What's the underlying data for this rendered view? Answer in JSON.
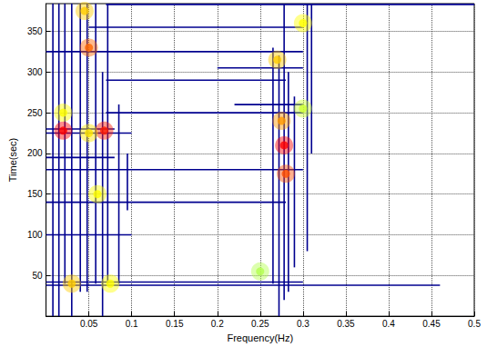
{
  "chart_data": {
    "type": "contour",
    "x_label": "Frequency(Hz)",
    "y_label": "Time(sec)",
    "xlim": [
      0,
      0.5
    ],
    "xticks": [
      0.05,
      0.1,
      0.15,
      0.2,
      0.25,
      0.3,
      0.35,
      0.4,
      0.45,
      0.5
    ],
    "ylim": [
      0,
      384
    ],
    "yticks": [
      50,
      100,
      150,
      200,
      250,
      300,
      350
    ],
    "grid": true,
    "color": "#00008f",
    "zlim": [
      0,
      1
    ],
    "ridges": [
      {
        "x": 0.008,
        "y": [
          0,
          384
        ]
      },
      {
        "x": 0.015,
        "y": [
          0,
          384
        ]
      },
      {
        "x": 0.022,
        "y": [
          40,
          384
        ]
      },
      {
        "x": 0.03,
        "y": [
          0,
          384
        ]
      },
      {
        "x": 0.04,
        "y": [
          30,
          384
        ]
      },
      {
        "x": 0.048,
        "y": [
          30,
          384
        ]
      },
      {
        "x": 0.058,
        "y": [
          40,
          384
        ]
      },
      {
        "x": 0.066,
        "y": [
          0,
          300
        ]
      },
      {
        "x": 0.072,
        "y": [
          40,
          384
        ]
      },
      {
        "x": 0.085,
        "y": [
          40,
          260
        ]
      },
      {
        "x": 0.095,
        "y": [
          130,
          200
        ]
      },
      {
        "x": 0.265,
        "y": [
          40,
          330
        ]
      },
      {
        "x": 0.272,
        "y": [
          0,
          320
        ]
      },
      {
        "x": 0.278,
        "y": [
          20,
          384
        ]
      },
      {
        "x": 0.283,
        "y": [
          30,
          300
        ]
      },
      {
        "x": 0.29,
        "y": [
          60,
          270
        ]
      },
      {
        "x": 0.305,
        "y": [
          80,
          384
        ]
      },
      {
        "x": 0.31,
        "y": [
          200,
          384
        ]
      }
    ],
    "bands": [
      {
        "y": 38,
        "x": [
          0,
          0.46
        ]
      },
      {
        "y": 42,
        "x": [
          0,
          0.3
        ]
      },
      {
        "y": 100,
        "x": [
          0,
          0.1
        ]
      },
      {
        "y": 140,
        "x": [
          0,
          0.28
        ]
      },
      {
        "y": 180,
        "x": [
          0,
          0.3
        ]
      },
      {
        "y": 195,
        "x": [
          0,
          0.08
        ]
      },
      {
        "y": 225,
        "x": [
          0,
          0.1
        ]
      },
      {
        "y": 230,
        "x": [
          0,
          0.08
        ]
      },
      {
        "y": 250,
        "x": [
          0.07,
          0.3
        ]
      },
      {
        "y": 260,
        "x": [
          0.22,
          0.3
        ]
      },
      {
        "y": 290,
        "x": [
          0.07,
          0.28
        ]
      },
      {
        "y": 305,
        "x": [
          0.2,
          0.3
        ]
      },
      {
        "y": 325,
        "x": [
          0,
          0.3
        ]
      },
      {
        "y": 355,
        "x": [
          0.05,
          0.3
        ]
      },
      {
        "y": 383,
        "x": [
          0.07,
          0.5
        ]
      }
    ],
    "peaks": [
      [
        0.02,
        228,
        1
      ],
      [
        0.068,
        228,
        0.95
      ],
      [
        0.03,
        40,
        0.6
      ],
      [
        0.05,
        330,
        0.8
      ],
      [
        0.045,
        375,
        0.6
      ],
      [
        0.278,
        210,
        1
      ],
      [
        0.28,
        175,
        0.85
      ],
      [
        0.275,
        240,
        0.7
      ],
      [
        0.27,
        315,
        0.6
      ],
      [
        0.06,
        150,
        0.5
      ],
      [
        0.02,
        250,
        0.5
      ],
      [
        0.05,
        225,
        0.55
      ],
      [
        0.3,
        360,
        0.5
      ],
      [
        0.075,
        40,
        0.5
      ],
      [
        0.25,
        55,
        0.35
      ],
      [
        0.3,
        255,
        0.4
      ]
    ]
  }
}
